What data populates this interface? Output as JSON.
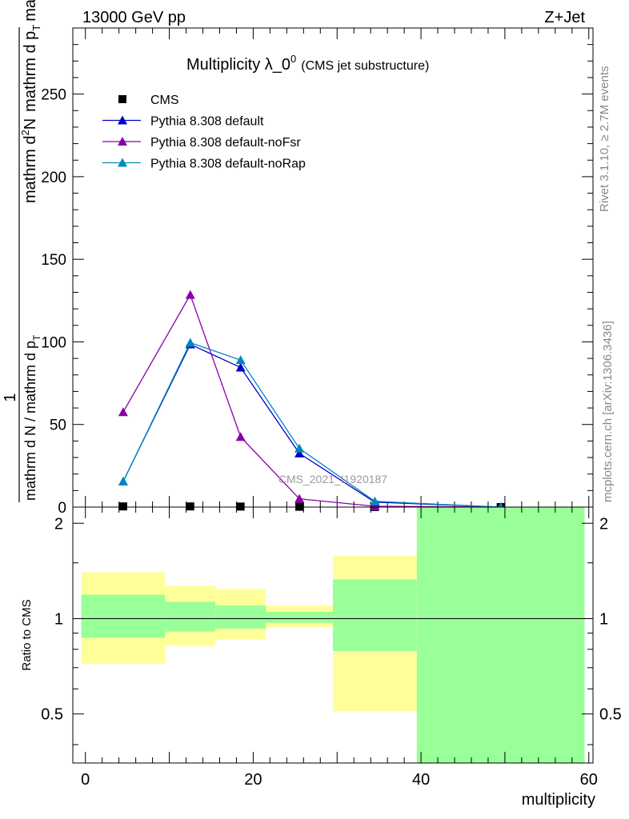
{
  "header": {
    "left": "13000 GeV pp",
    "right": "Z+Jet"
  },
  "side": {
    "rivet": "Rivet 3.1.10, ≥ 2.7M events",
    "mcplots": "mcplots.cern.ch [arXiv:1306.3436]"
  },
  "watermark": "CMS_2021_I1920187",
  "colors": {
    "cms": "#000000",
    "default": "#0000cc",
    "noFsr": "#8800aa",
    "noRap": "#0088bb",
    "band_inner": "#99ff99",
    "band_outer": "#ffff99"
  },
  "chart_data": [
    {
      "type": "line",
      "title_main": "Multiplicity λ_0",
      "title_sup": "0",
      "title_sub": "(CMS jet substructure)",
      "ylabel_top": "1",
      "ylabel_bottom": "mathrm d N / mathrm d p",
      "ylabel_bottom_sub": "T",
      "ylabel_bottom2": "mathrm d p",
      "ylabel_bottom_sub2": "T",
      "ylabel_bottom3": "mathrm d lambda",
      "ylabel_numer": "mathrm d",
      "ylabel_numer_sup": "2",
      "ylabel_numer2": "N",
      "xlim": [
        -1.5,
        60.5
      ],
      "ylim": [
        0,
        290
      ],
      "yticks": [
        0,
        50,
        100,
        150,
        200,
        250
      ],
      "legend_position": "top-left",
      "series": [
        {
          "name": "CMS",
          "marker": "square",
          "x": [
            4.5,
            12.5,
            18.5,
            25.5,
            34.5,
            49.5
          ],
          "y": [
            0.4,
            0.4,
            0.3,
            0.2,
            0.05,
            0.0
          ]
        },
        {
          "name": "Pythia 8.308 default",
          "marker": "triangle",
          "x": [
            4.5,
            12.5,
            18.5,
            25.5,
            34.5,
            49.5
          ],
          "y": [
            15.5,
            98.5,
            84.5,
            32.5,
            3.0,
            0.0
          ]
        },
        {
          "name": "Pythia 8.308 default-noFsr",
          "marker": "triangle",
          "x": [
            4.5,
            12.5,
            18.5,
            25.5,
            34.5,
            49.5
          ],
          "y": [
            57.5,
            128.5,
            42.5,
            5.0,
            0.5,
            0.0
          ]
        },
        {
          "name": "Pythia 8.308 default-noRap",
          "marker": "triangle",
          "x": [
            4.5,
            12.5,
            18.5,
            25.5,
            34.5,
            49.5
          ],
          "y": [
            15.5,
            99.5,
            89.0,
            35.5,
            3.5,
            0.0
          ]
        }
      ]
    },
    {
      "type": "area",
      "ylabel": "Ratio to CMS",
      "xlabel": "multiplicity",
      "xlim": [
        -1.5,
        60.5
      ],
      "ylim": [
        0.35,
        2.25
      ],
      "xticks": [
        0,
        20,
        40,
        60
      ],
      "yticks": [
        0.5,
        1,
        2
      ],
      "bands": [
        {
          "x0": -0.5,
          "x1": 9.5,
          "outer": [
            0.72,
            1.4
          ],
          "inner": [
            0.87,
            1.19
          ]
        },
        {
          "x0": 9.5,
          "x1": 15.5,
          "outer": [
            0.82,
            1.27
          ],
          "inner": [
            0.91,
            1.13
          ]
        },
        {
          "x0": 15.5,
          "x1": 21.5,
          "outer": [
            0.86,
            1.24
          ],
          "inner": [
            0.93,
            1.1
          ]
        },
        {
          "x0": 21.5,
          "x1": 29.5,
          "outer": [
            0.94,
            1.1
          ],
          "inner": [
            0.97,
            1.05
          ]
        },
        {
          "x0": 29.5,
          "x1": 39.5,
          "outer": [
            0.51,
            1.58
          ],
          "inner": [
            0.79,
            1.33
          ]
        },
        {
          "x0": 39.5,
          "x1": 59.5,
          "outer": [
            0.35,
            2.25
          ],
          "inner": [
            0.35,
            2.25
          ]
        }
      ]
    }
  ]
}
